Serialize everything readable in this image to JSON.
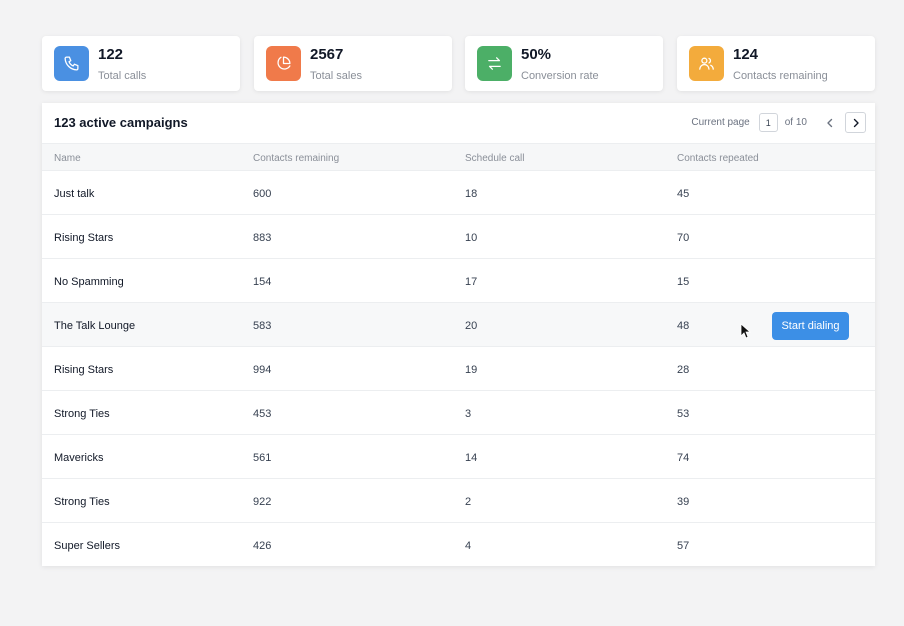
{
  "stats": [
    {
      "value": "122",
      "label": "Total calls",
      "icon": "phone-icon",
      "color": "#4a90e2"
    },
    {
      "value": "2567",
      "label": "Total sales",
      "icon": "pie-chart-icon",
      "color": "#f07a4a"
    },
    {
      "value": "50%",
      "label": "Conversion rate",
      "icon": "arrows-swap-icon",
      "color": "#4caf67"
    },
    {
      "value": "124",
      "label": "Contacts remaining",
      "icon": "users-icon",
      "color": "#f3ab3c"
    }
  ],
  "campaigns": {
    "title": "123 active campaigns",
    "pager": {
      "current_label": "Current page",
      "page": "1",
      "of_label": "of 10"
    },
    "columns": [
      "Name",
      "Contacts remaining",
      "Schedule call",
      "Contacts repeated"
    ],
    "rows": [
      {
        "name": "Just talk",
        "remaining": "600",
        "schedule": "18",
        "repeated": "45"
      },
      {
        "name": "Rising Stars",
        "remaining": "883",
        "schedule": "10",
        "repeated": "70"
      },
      {
        "name": "No Spamming",
        "remaining": "154",
        "schedule": "17",
        "repeated": "15"
      },
      {
        "name": "The Talk Lounge",
        "remaining": "583",
        "schedule": "20",
        "repeated": "48"
      },
      {
        "name": "Rising Stars",
        "remaining": "994",
        "schedule": "19",
        "repeated": "28"
      },
      {
        "name": "Strong Ties",
        "remaining": "453",
        "schedule": "3",
        "repeated": "53"
      },
      {
        "name": "Mavericks",
        "remaining": "561",
        "schedule": "14",
        "repeated": "74"
      },
      {
        "name": "Strong Ties",
        "remaining": "922",
        "schedule": "2",
        "repeated": "39"
      },
      {
        "name": "Super Sellers",
        "remaining": "426",
        "schedule": "4",
        "repeated": "57"
      }
    ],
    "hover_row": 3,
    "action_label": "Start dialing",
    "action_color": "#3c8fe6"
  }
}
